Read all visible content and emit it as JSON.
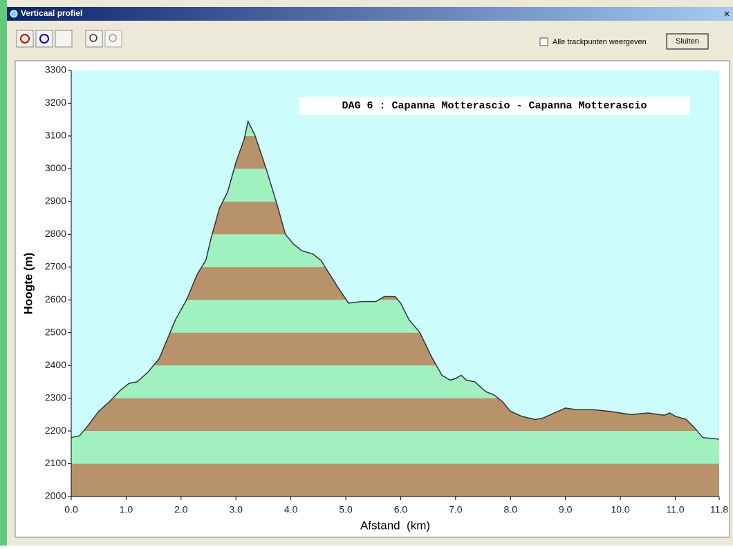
{
  "window": {
    "title": "Verticaal profiel",
    "close": "×"
  },
  "toolbar": {
    "checkbox_label": "Alle trackpunten weergeven",
    "button": "Sluiten"
  },
  "chart_data": {
    "type": "area",
    "title": "DAG 6 : Capanna Motterascio - Capanna Motterascio",
    "xlabel": "Afstand  (km)",
    "ylabel": "Hoogte (m)",
    "x": [
      0.0,
      0.15,
      0.3,
      0.5,
      0.7,
      0.9,
      1.05,
      1.2,
      1.4,
      1.6,
      1.75,
      1.9,
      2.1,
      2.3,
      2.45,
      2.55,
      2.7,
      2.85,
      3.0,
      3.15,
      3.22,
      3.35,
      3.55,
      3.75,
      3.9,
      4.05,
      4.2,
      4.4,
      4.55,
      4.7,
      4.85,
      5.05,
      5.3,
      5.55,
      5.7,
      5.9,
      6.0,
      6.15,
      6.35,
      6.55,
      6.75,
      6.9,
      7.0,
      7.1,
      7.2,
      7.35,
      7.55,
      7.7,
      7.85,
      8.0,
      8.2,
      8.45,
      8.6,
      8.8,
      9.0,
      9.2,
      9.5,
      9.8,
      10.0,
      10.2,
      10.5,
      10.8,
      10.9,
      11.0,
      11.2,
      11.35,
      11.5,
      11.8
    ],
    "values": [
      2180,
      2185,
      2215,
      2260,
      2290,
      2325,
      2345,
      2350,
      2380,
      2420,
      2480,
      2540,
      2600,
      2680,
      2720,
      2790,
      2880,
      2930,
      3020,
      3090,
      3145,
      3100,
      3000,
      2890,
      2800,
      2770,
      2750,
      2740,
      2720,
      2680,
      2640,
      2590,
      2595,
      2595,
      2610,
      2610,
      2590,
      2540,
      2500,
      2430,
      2370,
      2355,
      2360,
      2370,
      2355,
      2350,
      2320,
      2310,
      2290,
      2260,
      2245,
      2235,
      2240,
      2255,
      2270,
      2265,
      2265,
      2260,
      2255,
      2250,
      2255,
      2248,
      2255,
      2245,
      2235,
      2210,
      2180,
      2175
    ],
    "xlim": [
      0,
      11.8
    ],
    "xticks": [
      {
        "value": 0,
        "label": "0.0"
      },
      {
        "value": 1,
        "label": "1.0"
      },
      {
        "value": 2,
        "label": "2.0"
      },
      {
        "value": 3,
        "label": "3.0"
      },
      {
        "value": 4,
        "label": "4.0"
      },
      {
        "value": 5,
        "label": "5.0"
      },
      {
        "value": 6,
        "label": "6.0"
      },
      {
        "value": 7,
        "label": "7.0"
      },
      {
        "value": 8,
        "label": "8.0"
      },
      {
        "value": 9,
        "label": "9.0"
      },
      {
        "value": 10,
        "label": "10.0"
      },
      {
        "value": 11,
        "label": "11.0"
      },
      {
        "value": 11.8,
        "label": "11.8"
      }
    ],
    "ylim": [
      2000,
      3300
    ],
    "yticks": [
      2000,
      2100,
      2200,
      2300,
      2400,
      2500,
      2600,
      2700,
      2800,
      2900,
      3000,
      3100,
      3200,
      3300
    ],
    "band_colors": [
      "#b8926a",
      "#a0f0c0"
    ],
    "line_color": "#333333",
    "background": "#ccfcfc"
  }
}
